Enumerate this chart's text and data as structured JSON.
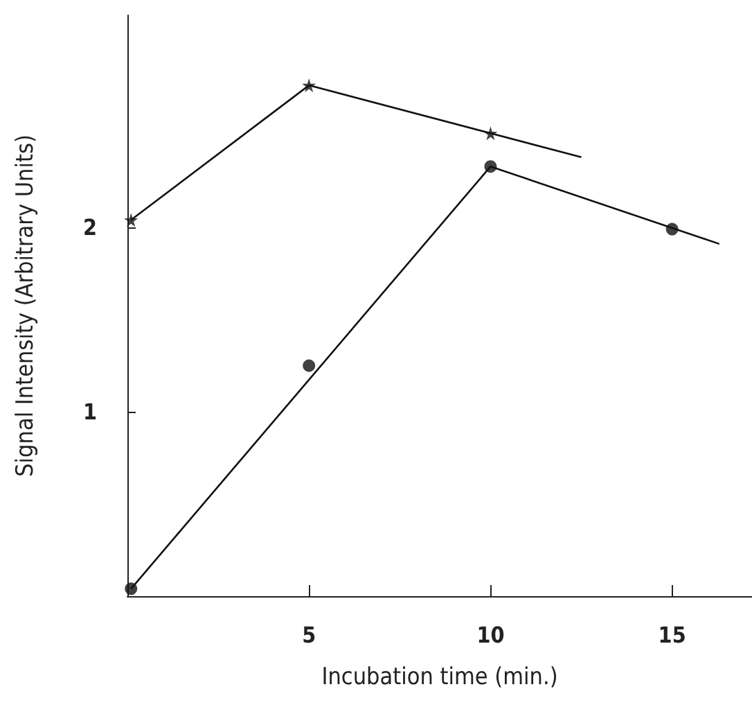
{
  "chart_data": {
    "type": "line",
    "xlabel": "Incubation time (min.)",
    "ylabel": "Signal Intensity (Arbitrary Units)",
    "xlim": [
      0,
      17.2
    ],
    "xticks": [
      5,
      10,
      15
    ],
    "ylim": [
      0,
      3.15
    ],
    "yticks": [
      1,
      2
    ],
    "grid": false,
    "series": [
      {
        "type": "scatter",
        "marker": "star",
        "color": "#111111",
        "x": [
          0.1,
          5,
          10
        ],
        "values": [
          2.04,
          2.77,
          2.51
        ]
      },
      {
        "marker": "none",
        "line_style": "solid",
        "color": "#111111",
        "x": [
          0.1,
          5,
          12.5
        ],
        "values": [
          2.04,
          2.77,
          2.38
        ]
      },
      {
        "type": "scatter",
        "marker": "circle",
        "color": "#111111",
        "x": [
          0.1,
          5,
          10,
          15
        ],
        "values": [
          0.04,
          1.25,
          2.33,
          1.99
        ]
      },
      {
        "marker": "none",
        "line_style": "solid",
        "color": "#111111",
        "x": [
          0.1,
          10,
          16.3
        ],
        "values": [
          0.04,
          2.33,
          1.91
        ]
      }
    ]
  }
}
